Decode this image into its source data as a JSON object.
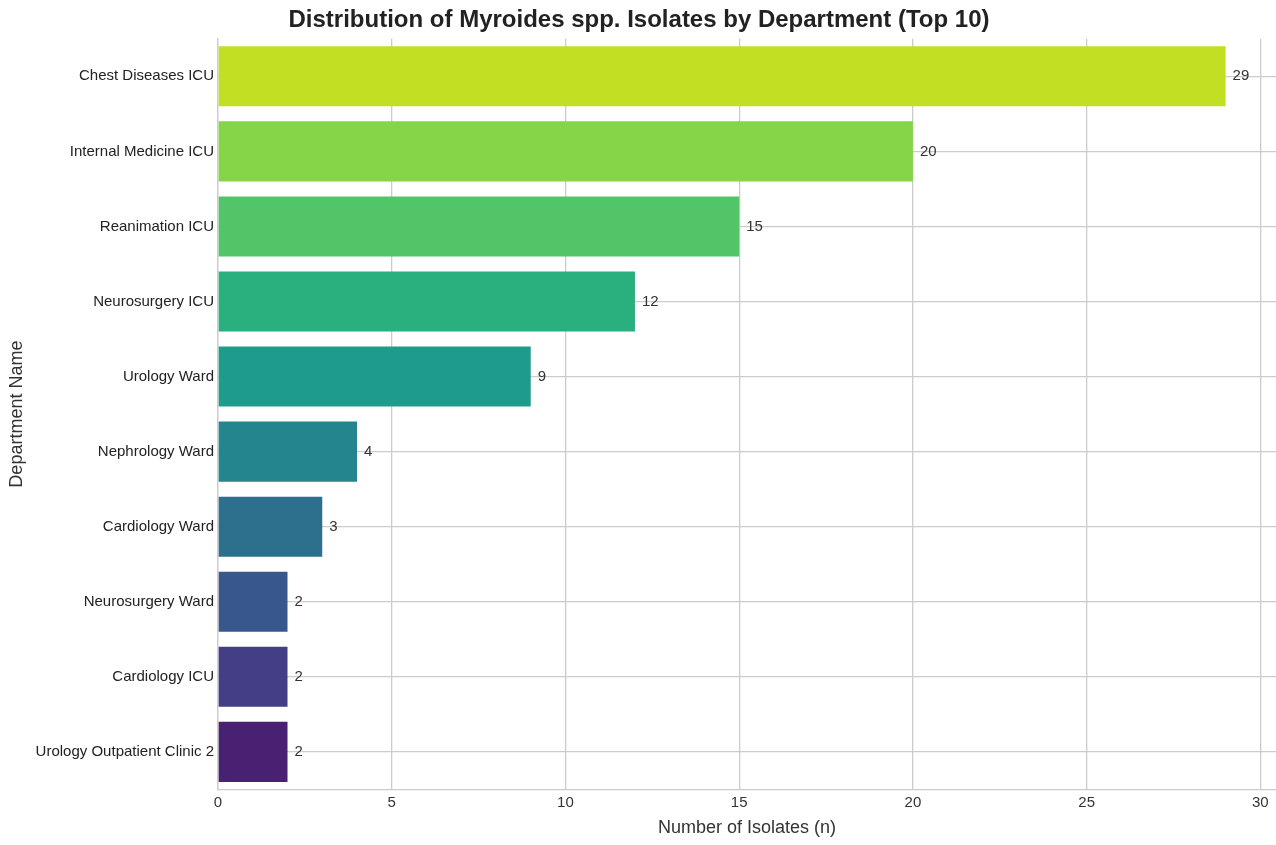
{
  "chart_data": {
    "type": "bar",
    "orientation": "horizontal",
    "title": "Distribution of Myroides spp. Isolates by Department (Top 10)",
    "xlabel": "Number of Isolates (n)",
    "ylabel": "Department Name",
    "categories": [
      "Chest Diseases ICU",
      "Internal Medicine ICU",
      "Reanimation ICU",
      "Neurosurgery ICU",
      "Urology Ward",
      "Nephrology Ward",
      "Cardiology Ward",
      "Neurosurgery Ward",
      "Cardiology ICU",
      "Urology Outpatient Clinic 2"
    ],
    "values": [
      29,
      20,
      15,
      12,
      9,
      4,
      3,
      2,
      2,
      2
    ],
    "colors": [
      "#c2df23",
      "#86d549",
      "#52c569",
      "#2ab07f",
      "#1e9b8a",
      "#25858e",
      "#2d708e",
      "#38588c",
      "#433e85",
      "#482173"
    ],
    "xlim": [
      0,
      30.45
    ],
    "xticks": [
      0,
      5,
      10,
      15,
      20,
      25,
      30
    ],
    "grid": true,
    "data_labels": true
  }
}
